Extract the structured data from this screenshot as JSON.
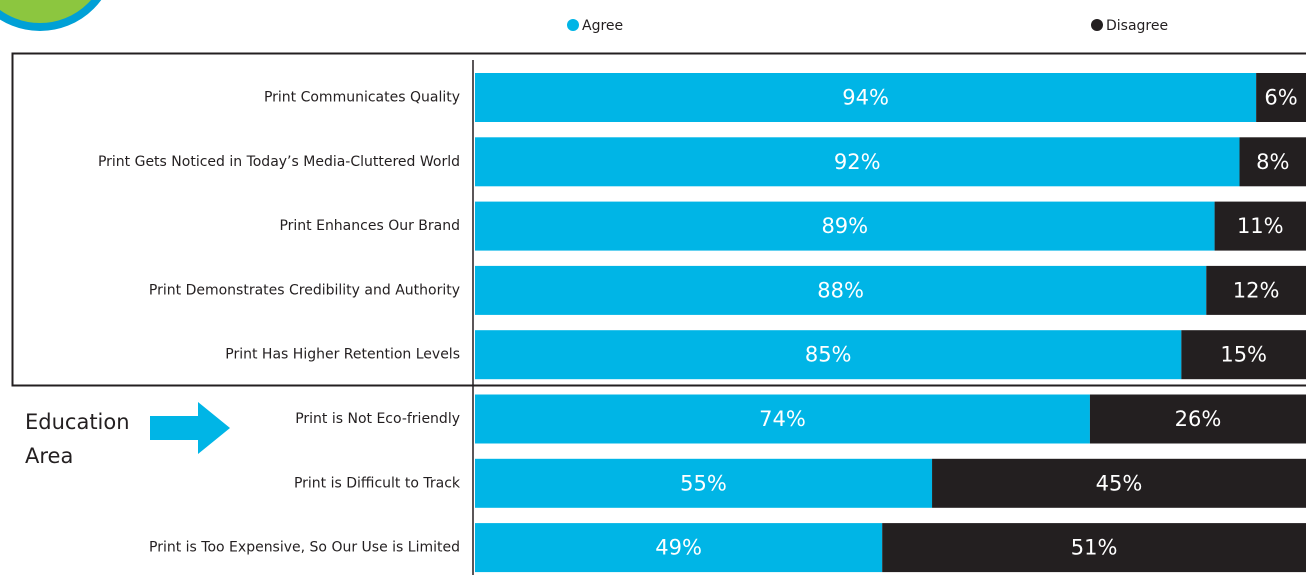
{
  "chart_data": {
    "type": "stacked-bar-horizontal",
    "annotation": "Education Area",
    "categories": [
      "Print Communicates Quality",
      "Print Gets Noticed in Today’s Media-Cluttered World",
      "Print Enhances Our Brand",
      "Print Demonstrates Credibility and Authority",
      "Print Has Higher Retention Levels",
      "Print is Not Eco-friendly",
      "Print is Difficult to Track",
      "Print is Too Expensive, So Our Use is Limited"
    ],
    "series": [
      {
        "name": "Agree",
        "color": "#00b5e6",
        "values": [
          94,
          92,
          89,
          88,
          85,
          74,
          55,
          49
        ],
        "value_labels": [
          "94%",
          "92%",
          "89%",
          "88%",
          "85%",
          "74%",
          "55%",
          "49%"
        ]
      },
      {
        "name": "Disagree",
        "color": "#231f20",
        "values": [
          6,
          8,
          11,
          12,
          15,
          26,
          45,
          51
        ],
        "value_labels": [
          "6%",
          "8%",
          "11%",
          "12%",
          "15%",
          "26%",
          "45%",
          "51%"
        ]
      }
    ]
  }
}
